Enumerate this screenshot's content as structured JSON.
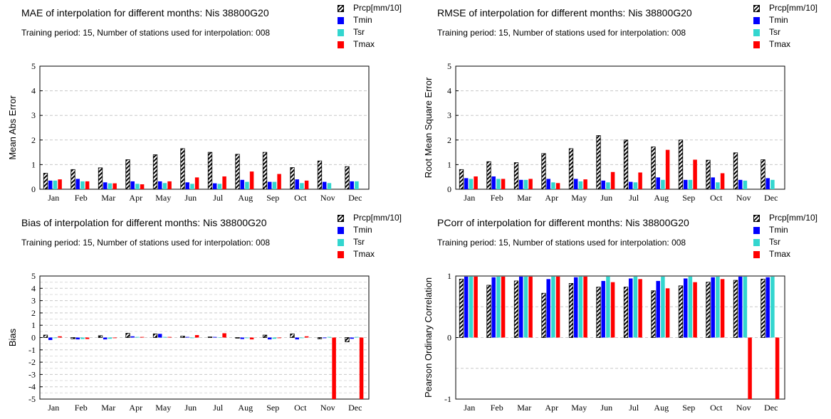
{
  "colors": {
    "prcp_hatch": "#000000",
    "tmin": "#0000ff",
    "tsr": "#33d6cf",
    "tmax": "#ff0000"
  },
  "legend": [
    "Prcp[mm/10]",
    "Tmin",
    "Tsr",
    "Tmax"
  ],
  "panels": [
    {
      "title": "MAE of interpolation for different months: Nis  38800G20",
      "subtitle": "Training period: 15, Number of stations used for interpolation: 008"
    },
    {
      "title": "RMSE of interpolation for different months: Nis  38800G20",
      "subtitle": "Training period: 15, Number of stations used for interpolation: 008"
    },
    {
      "title": "Bias of interpolation for different months: Nis  38800G20",
      "subtitle": "Training period: 15, Number of stations used for interpolation: 008"
    },
    {
      "title": "PCorr of interpolation for different months: Nis  38800G20",
      "subtitle": "Training period: 15, Number of stations used for interpolation: 008"
    }
  ],
  "chart_data": [
    {
      "type": "bar",
      "title": "MAE of interpolation for different months: Nis  38800G20",
      "ylabel": "Mean Abs Error",
      "ylim": [
        0,
        5
      ],
      "yticks": [
        "0",
        "1",
        "2",
        "3",
        "4",
        "5"
      ],
      "grid": true,
      "categories": [
        "Jan",
        "Feb",
        "Mar",
        "Apr",
        "May",
        "Jun",
        "Jul",
        "Aug",
        "Sep",
        "Oct",
        "Nov",
        "Dec"
      ],
      "series": [
        {
          "name": "Prcp[mm/10]",
          "values": [
            0.65,
            0.8,
            0.87,
            1.2,
            1.4,
            1.65,
            1.5,
            1.42,
            1.5,
            0.88,
            1.15,
            0.92
          ]
        },
        {
          "name": "Tmin",
          "values": [
            0.35,
            0.42,
            0.28,
            0.32,
            0.32,
            0.28,
            0.24,
            0.38,
            0.3,
            0.4,
            0.3,
            0.32
          ]
        },
        {
          "name": "Tsr",
          "values": [
            0.35,
            0.32,
            0.24,
            0.22,
            0.25,
            0.22,
            0.22,
            0.3,
            0.3,
            0.25,
            0.25,
            0.32
          ]
        },
        {
          "name": "Tmax",
          "values": [
            0.4,
            0.32,
            0.24,
            0.2,
            0.32,
            0.48,
            0.52,
            0.72,
            0.62,
            0.35,
            0,
            0
          ]
        }
      ]
    },
    {
      "type": "bar",
      "title": "RMSE of interpolation for different months: Nis  38800G20",
      "ylabel": "Root Mean Square Error",
      "ylim": [
        0,
        5
      ],
      "yticks": [
        "0",
        "1",
        "2",
        "3",
        "4",
        "5"
      ],
      "grid": true,
      "categories": [
        "Jan",
        "Feb",
        "Mar",
        "Apr",
        "May",
        "Jun",
        "Jul",
        "Aug",
        "Sep",
        "Oct",
        "Nov",
        "Dec"
      ],
      "series": [
        {
          "name": "Prcp[mm/10]",
          "values": [
            0.8,
            1.12,
            1.08,
            1.45,
            1.65,
            2.18,
            2.0,
            1.72,
            2.0,
            1.18,
            1.48,
            1.2
          ]
        },
        {
          "name": "Tmin",
          "values": [
            0.45,
            0.52,
            0.38,
            0.42,
            0.42,
            0.35,
            0.3,
            0.48,
            0.38,
            0.48,
            0.38,
            0.45
          ]
        },
        {
          "name": "Tsr",
          "values": [
            0.42,
            0.42,
            0.38,
            0.28,
            0.32,
            0.28,
            0.28,
            0.38,
            0.38,
            0.28,
            0.35,
            0.38
          ]
        },
        {
          "name": "Tmax",
          "values": [
            0.52,
            0.42,
            0.42,
            0.25,
            0.4,
            0.7,
            0.68,
            1.6,
            1.2,
            0.65,
            0,
            0
          ]
        }
      ]
    },
    {
      "type": "bar",
      "title": "Bias of interpolation for different months: Nis  38800G20",
      "ylabel": "Bias",
      "ylim": [
        -5,
        5
      ],
      "yticks": [
        "-5",
        "-4",
        "-3",
        "-2",
        "-1",
        "0",
        "1",
        "2",
        "3",
        "4",
        "5"
      ],
      "grid": true,
      "categories": [
        "Jan",
        "Feb",
        "Mar",
        "Apr",
        "May",
        "Jun",
        "Jul",
        "Aug",
        "Sep",
        "Oct",
        "Nov",
        "Dec"
      ],
      "series": [
        {
          "name": "Prcp[mm/10]",
          "values": [
            0.2,
            -0.1,
            0.15,
            0.35,
            0.3,
            0.12,
            0.05,
            -0.05,
            0.2,
            0.3,
            -0.1,
            -0.35
          ]
        },
        {
          "name": "Tmin",
          "values": [
            -0.2,
            -0.15,
            -0.15,
            0.1,
            0.3,
            0.05,
            0.05,
            -0.12,
            -0.15,
            -0.15,
            -0.05,
            -0.1
          ]
        },
        {
          "name": "Tsr",
          "values": [
            -0.05,
            -0.12,
            -0.1,
            0.05,
            0.05,
            -0.05,
            0.02,
            -0.05,
            -0.1,
            -0.05,
            0.05,
            0.05
          ]
        },
        {
          "name": "Tmax",
          "values": [
            0.1,
            -0.12,
            -0.05,
            0.05,
            0.05,
            0.2,
            0.35,
            -0.15,
            -0.05,
            0.1,
            -5,
            -5
          ]
        }
      ]
    },
    {
      "type": "bar",
      "title": "PCorr of interpolation for different months: Nis  38800G20",
      "ylabel": "Pearson Ordinary Correlation",
      "ylim": [
        -1,
        1
      ],
      "yticks": [
        "-1",
        "0",
        "1"
      ],
      "grid": true,
      "categories": [
        "Jan",
        "Feb",
        "Mar",
        "Apr",
        "May",
        "Jun",
        "Jul",
        "Aug",
        "Sep",
        "Oct",
        "Nov",
        "Dec"
      ],
      "series": [
        {
          "name": "Prcp[mm/10]",
          "values": [
            0.95,
            0.85,
            0.92,
            0.72,
            0.88,
            0.82,
            0.82,
            0.76,
            0.84,
            0.9,
            0.93,
            0.95
          ]
        },
        {
          "name": "Tmin",
          "values": [
            0.99,
            0.98,
            0.99,
            0.95,
            0.98,
            0.92,
            0.96,
            0.92,
            0.96,
            0.98,
            0.99,
            0.98
          ]
        },
        {
          "name": "Tsr",
          "values": [
            0.99,
            0.99,
            0.99,
            0.99,
            0.99,
            0.99,
            0.99,
            0.99,
            0.99,
            0.99,
            0.99,
            0.99
          ]
        },
        {
          "name": "Tmax",
          "values": [
            0.99,
            0.99,
            0.99,
            0.99,
            0.99,
            0.9,
            0.95,
            0.8,
            0.9,
            0.95,
            -1,
            -1
          ]
        }
      ]
    }
  ]
}
